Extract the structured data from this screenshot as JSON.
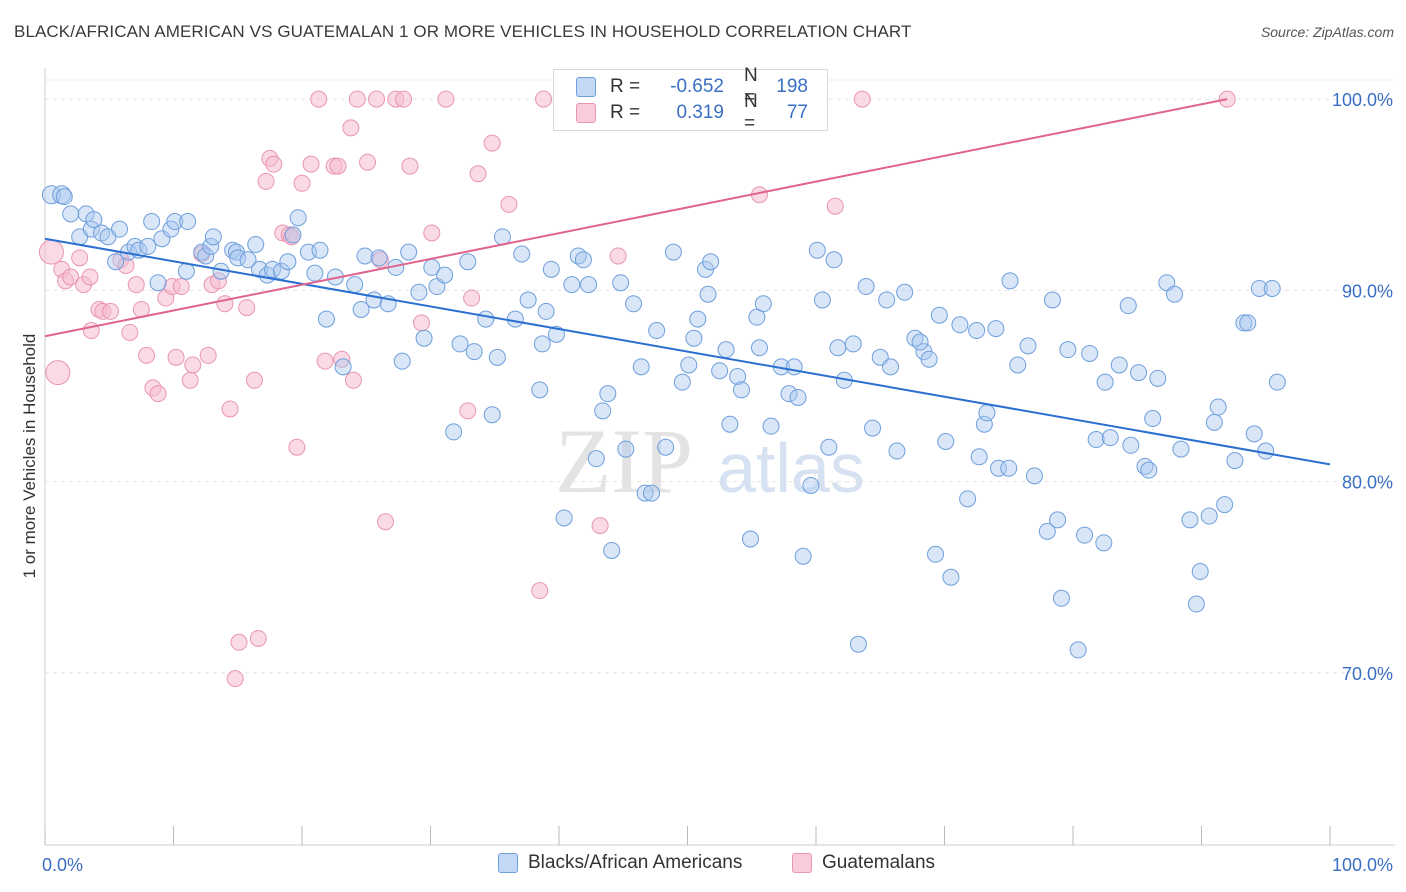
{
  "title": "BLACK/AFRICAN AMERICAN VS GUATEMALAN 1 OR MORE VEHICLES IN HOUSEHOLD CORRELATION CHART",
  "source": "Source: ZipAtlas.com",
  "watermark": {
    "zip": "ZIP",
    "atlas": "atlas"
  },
  "colors": {
    "blue_fill": "#a9c8f0",
    "blue_stroke": "#6f9fdc",
    "blue_line": "#2b6fd0",
    "pink_fill": "#f5bcce",
    "pink_stroke": "#e996b1",
    "pink_line": "#e0648e",
    "tick_label": "#3a6fc4",
    "grid": "#e4e4e4"
  },
  "legend_top": {
    "rows": [
      {
        "r_label": "R =",
        "r_value": "-0.652",
        "n_label": "N =",
        "n_value": "198",
        "color": "blue"
      },
      {
        "r_label": "R =",
        "r_value": "0.319",
        "n_label": "N =",
        "n_value": "77",
        "color": "pink"
      }
    ]
  },
  "legend_bottom": [
    "Blacks/African Americans",
    "Guatemalans"
  ],
  "chart_data": {
    "type": "scatter",
    "title": "BLACK/AFRICAN AMERICAN VS GUATEMALAN 1 OR MORE VEHICLES IN HOUSEHOLD CORRELATION CHART",
    "xlabel": "",
    "ylabel": "1 or more Vehicles in Household",
    "xlim": [
      0,
      100
    ],
    "ylim": [
      61,
      101
    ],
    "x_tick_labels": [
      "0.0%",
      "100.0%"
    ],
    "y_ticks": [
      70,
      80,
      90,
      100
    ],
    "y_tick_labels": [
      "70.0%",
      "80.0%",
      "90.0%",
      "100.0%"
    ],
    "grid": true,
    "legend_position": "top-center",
    "series": [
      {
        "name": "Blacks/African Americans",
        "color": "blue",
        "trend": {
          "x": [
            0,
            100
          ],
          "y": [
            92.7,
            80.9
          ]
        },
        "points": [
          [
            0.5,
            95
          ],
          [
            1.3,
            95
          ],
          [
            1.5,
            94.9
          ],
          [
            2.0,
            94
          ],
          [
            2.7,
            92.8
          ],
          [
            3.2,
            94
          ],
          [
            3.6,
            93.2
          ],
          [
            3.8,
            93.7
          ],
          [
            4.4,
            93
          ],
          [
            4.9,
            92.8
          ],
          [
            5.5,
            91.5
          ],
          [
            5.8,
            93.2
          ],
          [
            6.5,
            92
          ],
          [
            7.0,
            92.3
          ],
          [
            7.3,
            92.1
          ],
          [
            8.0,
            92.3
          ],
          [
            8.3,
            93.6
          ],
          [
            8.8,
            90.4
          ],
          [
            9.1,
            92.7
          ],
          [
            9.8,
            93.2
          ],
          [
            10.1,
            93.6
          ],
          [
            11.1,
            93.6
          ],
          [
            11.0,
            91
          ],
          [
            12.2,
            92
          ],
          [
            12.5,
            91.8
          ],
          [
            12.9,
            92.3
          ],
          [
            13.1,
            92.8
          ],
          [
            13.7,
            91
          ],
          [
            14.6,
            92.1
          ],
          [
            14.9,
            92
          ],
          [
            15.0,
            91.7
          ],
          [
            15.8,
            91.6
          ],
          [
            16.4,
            92.4
          ],
          [
            16.7,
            91.1
          ],
          [
            17.3,
            90.8
          ],
          [
            17.7,
            91.1
          ],
          [
            18.4,
            91
          ],
          [
            18.9,
            91.5
          ],
          [
            19.3,
            92.9
          ],
          [
            19.7,
            93.8
          ],
          [
            20.5,
            92
          ],
          [
            21.0,
            90.9
          ],
          [
            21.4,
            92.1
          ],
          [
            21.9,
            88.5
          ],
          [
            22.6,
            90.7
          ],
          [
            23.2,
            86
          ],
          [
            24.1,
            90.3
          ],
          [
            24.6,
            89
          ],
          [
            24.9,
            91.8
          ],
          [
            25.6,
            89.5
          ],
          [
            26.0,
            91.7
          ],
          [
            26.7,
            89.3
          ],
          [
            27.3,
            91.2
          ],
          [
            27.8,
            86.3
          ],
          [
            28.3,
            92
          ],
          [
            29.1,
            89.9
          ],
          [
            29.5,
            87.5
          ],
          [
            30.1,
            91.2
          ],
          [
            30.5,
            90.2
          ],
          [
            31.1,
            90.8
          ],
          [
            31.8,
            82.6
          ],
          [
            32.3,
            87.2
          ],
          [
            32.9,
            91.5
          ],
          [
            33.4,
            86.8
          ],
          [
            34.3,
            88.5
          ],
          [
            34.8,
            83.5
          ],
          [
            35.2,
            86.5
          ],
          [
            35.6,
            92.8
          ],
          [
            36.6,
            88.5
          ],
          [
            37.1,
            91.9
          ],
          [
            37.6,
            89.5
          ],
          [
            38.5,
            84.8
          ],
          [
            38.7,
            87.2
          ],
          [
            39.0,
            88.9
          ],
          [
            39.4,
            91.1
          ],
          [
            39.8,
            87.7
          ],
          [
            40.4,
            78.1
          ],
          [
            41.0,
            90.3
          ],
          [
            41.5,
            91.8
          ],
          [
            41.9,
            91.6
          ],
          [
            42.3,
            90.3
          ],
          [
            42.9,
            81.2
          ],
          [
            43.4,
            83.7
          ],
          [
            43.8,
            84.6
          ],
          [
            44.1,
            76.4
          ],
          [
            44.8,
            90.4
          ],
          [
            45.2,
            81.7
          ],
          [
            45.8,
            89.3
          ],
          [
            46.4,
            86
          ],
          [
            46.7,
            79.4
          ],
          [
            47.2,
            79.4
          ],
          [
            47.6,
            87.9
          ],
          [
            48.3,
            81.8
          ],
          [
            48.9,
            92
          ],
          [
            49.6,
            85.2
          ],
          [
            50.1,
            86.1
          ],
          [
            50.5,
            87.5
          ],
          [
            50.8,
            88.5
          ],
          [
            51.4,
            91.1
          ],
          [
            51.8,
            91.5
          ],
          [
            51.6,
            89.8
          ],
          [
            52.5,
            85.8
          ],
          [
            53.0,
            86.9
          ],
          [
            53.3,
            83
          ],
          [
            53.9,
            85.5
          ],
          [
            54.2,
            84.8
          ],
          [
            54.9,
            77
          ],
          [
            55.4,
            88.6
          ],
          [
            55.9,
            89.3
          ],
          [
            55.6,
            87
          ],
          [
            56.5,
            82.9
          ],
          [
            57.3,
            86
          ],
          [
            57.9,
            84.6
          ],
          [
            58.3,
            86
          ],
          [
            58.6,
            84.4
          ],
          [
            59.0,
            76.1
          ],
          [
            59.6,
            79.8
          ],
          [
            60.1,
            92.1
          ],
          [
            60.5,
            89.5
          ],
          [
            61.0,
            81.8
          ],
          [
            61.4,
            91.6
          ],
          [
            61.7,
            87
          ],
          [
            62.2,
            85.3
          ],
          [
            62.9,
            87.2
          ],
          [
            63.3,
            71.5
          ],
          [
            63.9,
            90.2
          ],
          [
            64.4,
            82.8
          ],
          [
            65.0,
            86.5
          ],
          [
            65.5,
            89.5
          ],
          [
            65.8,
            86
          ],
          [
            66.3,
            81.6
          ],
          [
            66.9,
            89.9
          ],
          [
            67.7,
            87.5
          ],
          [
            68.4,
            86.8
          ],
          [
            68.1,
            87.3
          ],
          [
            68.8,
            86.4
          ],
          [
            69.3,
            76.2
          ],
          [
            69.6,
            88.7
          ],
          [
            70.1,
            82.1
          ],
          [
            70.5,
            75
          ],
          [
            71.2,
            88.2
          ],
          [
            71.8,
            79.1
          ],
          [
            72.5,
            87.9
          ],
          [
            72.7,
            81.3
          ],
          [
            73.1,
            83
          ],
          [
            73.3,
            83.6
          ],
          [
            74.0,
            88
          ],
          [
            74.2,
            80.7
          ],
          [
            75.0,
            80.7
          ],
          [
            75.1,
            90.5
          ],
          [
            75.7,
            86.1
          ],
          [
            76.5,
            87.1
          ],
          [
            77.0,
            80.3
          ],
          [
            78.0,
            77.4
          ],
          [
            78.4,
            89.5
          ],
          [
            78.8,
            78
          ],
          [
            79.1,
            73.9
          ],
          [
            79.6,
            86.9
          ],
          [
            80.4,
            71.2
          ],
          [
            80.9,
            77.2
          ],
          [
            81.3,
            86.7
          ],
          [
            81.8,
            82.2
          ],
          [
            82.4,
            76.8
          ],
          [
            82.5,
            85.2
          ],
          [
            82.9,
            82.3
          ],
          [
            83.6,
            86.1
          ],
          [
            84.3,
            89.2
          ],
          [
            84.5,
            81.9
          ],
          [
            85.1,
            85.7
          ],
          [
            85.6,
            80.8
          ],
          [
            85.9,
            80.6
          ],
          [
            86.2,
            83.3
          ],
          [
            86.6,
            85.4
          ],
          [
            87.3,
            90.4
          ],
          [
            87.9,
            89.8
          ],
          [
            88.4,
            81.7
          ],
          [
            89.1,
            78
          ],
          [
            89.9,
            75.3
          ],
          [
            89.6,
            73.6
          ],
          [
            90.6,
            78.2
          ],
          [
            91.0,
            83.1
          ],
          [
            91.3,
            83.9
          ],
          [
            91.8,
            78.8
          ],
          [
            92.6,
            81.1
          ],
          [
            93.3,
            88.3
          ],
          [
            93.6,
            88.3
          ],
          [
            94.1,
            82.5
          ],
          [
            94.5,
            90.1
          ],
          [
            95.0,
            81.6
          ],
          [
            95.5,
            90.1
          ],
          [
            95.9,
            85.2
          ]
        ]
      },
      {
        "name": "Guatemalans",
        "color": "pink",
        "trend": {
          "x": [
            0,
            92
          ],
          "y": [
            87.6,
            100
          ]
        },
        "points": [
          [
            0.5,
            92
          ],
          [
            1.0,
            85.7
          ],
          [
            1.3,
            91.1
          ],
          [
            1.6,
            90.5
          ],
          [
            2.0,
            90.7
          ],
          [
            2.7,
            91.7
          ],
          [
            3.0,
            90.3
          ],
          [
            3.5,
            90.7
          ],
          [
            3.6,
            87.9
          ],
          [
            4.2,
            89
          ],
          [
            4.5,
            88.9
          ],
          [
            5.1,
            88.9
          ],
          [
            5.9,
            91.6
          ],
          [
            6.3,
            91.3
          ],
          [
            6.6,
            87.8
          ],
          [
            7.1,
            90.3
          ],
          [
            7.5,
            89
          ],
          [
            7.9,
            86.6
          ],
          [
            8.4,
            84.9
          ],
          [
            8.8,
            84.6
          ],
          [
            9.4,
            89.6
          ],
          [
            9.9,
            90.2
          ],
          [
            10.2,
            86.5
          ],
          [
            10.6,
            90.2
          ],
          [
            11.3,
            85.3
          ],
          [
            11.5,
            86.1
          ],
          [
            12.2,
            91.9
          ],
          [
            12.7,
            86.6
          ],
          [
            13.0,
            90.3
          ],
          [
            13.5,
            90.5
          ],
          [
            14.0,
            89.3
          ],
          [
            14.4,
            83.8
          ],
          [
            14.8,
            69.7
          ],
          [
            15.1,
            71.6
          ],
          [
            15.7,
            89.1
          ],
          [
            16.3,
            85.3
          ],
          [
            16.6,
            71.8
          ],
          [
            17.2,
            95.7
          ],
          [
            17.5,
            96.9
          ],
          [
            17.8,
            96.6
          ],
          [
            18.5,
            93
          ],
          [
            19.0,
            92.9
          ],
          [
            19.2,
            92.8
          ],
          [
            19.6,
            81.8
          ],
          [
            20.0,
            95.6
          ],
          [
            20.7,
            96.6
          ],
          [
            21.3,
            100
          ],
          [
            21.8,
            86.3
          ],
          [
            22.5,
            96.5
          ],
          [
            22.8,
            96.5
          ],
          [
            23.1,
            86.4
          ],
          [
            23.8,
            98.5
          ],
          [
            24.0,
            85.3
          ],
          [
            24.3,
            100
          ],
          [
            25.1,
            96.7
          ],
          [
            25.8,
            100
          ],
          [
            26.1,
            91.6
          ],
          [
            26.5,
            77.9
          ],
          [
            27.3,
            100
          ],
          [
            27.9,
            100
          ],
          [
            28.4,
            96.5
          ],
          [
            29.3,
            88.3
          ],
          [
            30.1,
            93
          ],
          [
            31.2,
            100
          ],
          [
            32.9,
            83.7
          ],
          [
            33.2,
            89.6
          ],
          [
            33.7,
            96.1
          ],
          [
            34.8,
            97.7
          ],
          [
            36.1,
            94.5
          ],
          [
            38.5,
            74.3
          ],
          [
            38.8,
            100
          ],
          [
            43.2,
            77.7
          ],
          [
            44.6,
            91.8
          ],
          [
            55.6,
            95
          ],
          [
            61.5,
            94.4
          ],
          [
            63.6,
            100
          ],
          [
            92.0,
            100
          ]
        ]
      }
    ]
  }
}
